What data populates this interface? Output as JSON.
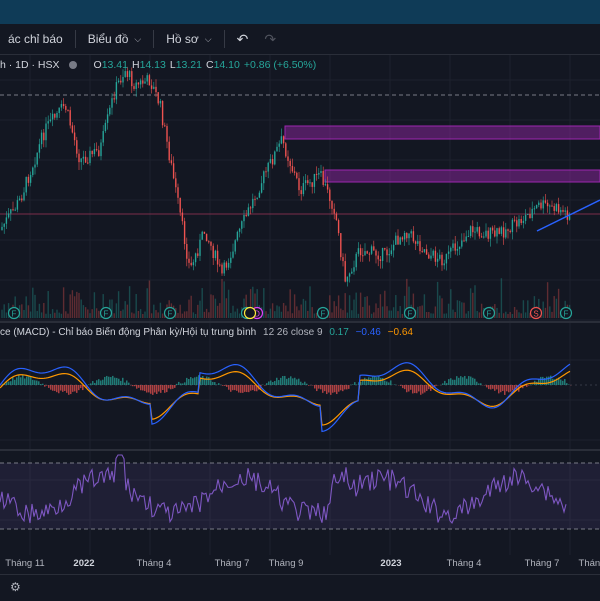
{
  "toolbar": {
    "indicators_label": "ác chỉ báo",
    "chart_type_label": "Biểu đồ",
    "templates_label": "Hồ sơ",
    "undo_icon": "undo-icon",
    "redo_icon": "redo-icon"
  },
  "legend": {
    "symbol": "h · 1D · HSX",
    "open_key": "O",
    "open": "13.41",
    "high_key": "H",
    "high": "14.13",
    "low_key": "L",
    "low": "13.21",
    "close_key": "C",
    "close": "14.10",
    "change": "+0.86 (+6.50%)"
  },
  "macd": {
    "title": "ce (MACD) - Chỉ báo Biến động Phân kỳ/Hội tụ trung bình",
    "params": "12 26 close 9",
    "val1": "0.17",
    "val2": "−0.46",
    "val3": "−0.64"
  },
  "xaxis": {
    "labels": [
      "Tháng 11",
      "2022",
      "Tháng 4",
      "Tháng 7",
      "Tháng 9",
      "2023",
      "Tháng 4",
      "Tháng 7",
      "Tháng"
    ]
  },
  "markers": [
    "F",
    "F",
    "F",
    "F",
    "D",
    "F",
    "F",
    "F",
    "F",
    "S",
    "F"
  ],
  "colors": {
    "background": "#131722",
    "up": "#26a69a",
    "down": "#ef5350",
    "zone": "#9c27b0",
    "trendline": "#2962ff",
    "macd_line": "#2962ff",
    "signal_line": "#ff9800",
    "rsi": "#7e57c2"
  }
}
